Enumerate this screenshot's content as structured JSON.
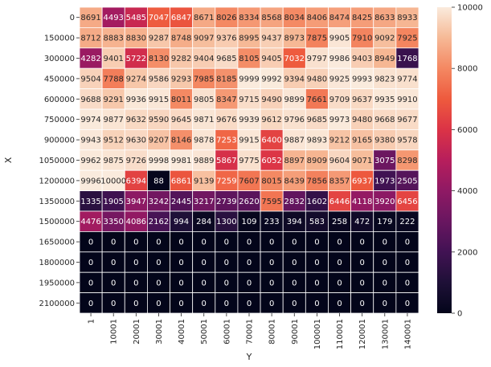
{
  "chart_data": {
    "type": "heatmap",
    "title": "",
    "xlabel": "Y",
    "ylabel": "X",
    "x": [
      "1",
      "10001",
      "20001",
      "30001",
      "40001",
      "50001",
      "60001",
      "70001",
      "80001",
      "90001",
      "100001",
      "110001",
      "120001",
      "130001",
      "140001"
    ],
    "y": [
      "0",
      "150000",
      "300000",
      "450000",
      "600000",
      "750000",
      "900000",
      "1050000",
      "1200000",
      "1350000",
      "1500000",
      "1650000",
      "1800000",
      "1950000",
      "2100000"
    ],
    "values": [
      [
        8691,
        4493,
        5485,
        7047,
        6847,
        8671,
        8026,
        8334,
        8568,
        8034,
        8406,
        8474,
        8425,
        8633,
        8933
      ],
      [
        8712,
        8883,
        8830,
        9287,
        8748,
        9097,
        9376,
        8995,
        9437,
        8973,
        7875,
        9905,
        7910,
        9092,
        7925
      ],
      [
        4282,
        9401,
        5722,
        8130,
        9282,
        9404,
        9685,
        8105,
        9405,
        7032,
        9797,
        9986,
        9403,
        8949,
        1768
      ],
      [
        9504,
        7788,
        9274,
        9586,
        9293,
        7985,
        8185,
        9999,
        9992,
        9394,
        9480,
        9925,
        9993,
        9823,
        9774
      ],
      [
        9688,
        9291,
        9936,
        9915,
        8011,
        9805,
        8347,
        9715,
        9490,
        9899,
        7661,
        9709,
        9637,
        9935,
        9910
      ],
      [
        9974,
        9877,
        9632,
        9590,
        9645,
        9871,
        9676,
        9939,
        9612,
        9796,
        9685,
        9973,
        9480,
        9668,
        9677
      ],
      [
        9943,
        9512,
        9630,
        9207,
        8146,
        9878,
        7253,
        9915,
        6400,
        9887,
        9893,
        9212,
        9165,
        9380,
        9578
      ],
      [
        9962,
        9875,
        9726,
        9998,
        9981,
        9889,
        5867,
        9775,
        6052,
        8897,
        8909,
        9604,
        9071,
        3075,
        8298
      ],
      [
        9996,
        10000,
        6394,
        88,
        6861,
        9139,
        7259,
        7607,
        8015,
        8439,
        7856,
        8357,
        6937,
        1973,
        2505
      ],
      [
        1335,
        1905,
        3947,
        3242,
        2445,
        3217,
        2739,
        2620,
        7595,
        2832,
        1602,
        6446,
        4118,
        3920,
        6456
      ],
      [
        4476,
        3350,
        4086,
        2162,
        994,
        284,
        1300,
        109,
        233,
        394,
        583,
        258,
        472,
        179,
        222
      ],
      [
        0,
        0,
        0,
        0,
        0,
        0,
        0,
        0,
        0,
        0,
        0,
        0,
        0,
        0,
        0
      ],
      [
        0,
        0,
        0,
        0,
        0,
        0,
        0,
        0,
        0,
        0,
        0,
        0,
        0,
        0,
        0
      ],
      [
        0,
        0,
        0,
        0,
        0,
        0,
        0,
        0,
        0,
        0,
        0,
        0,
        0,
        0,
        0
      ],
      [
        0,
        0,
        0,
        0,
        0,
        0,
        0,
        0,
        0,
        0,
        0,
        0,
        0,
        0,
        0
      ]
    ],
    "colorbar": {
      "range": [
        0,
        10000
      ],
      "ticks": [
        "0",
        "2000",
        "4000",
        "6000",
        "8000",
        "10000"
      ]
    },
    "colormap": "rocket",
    "annotated": true
  }
}
